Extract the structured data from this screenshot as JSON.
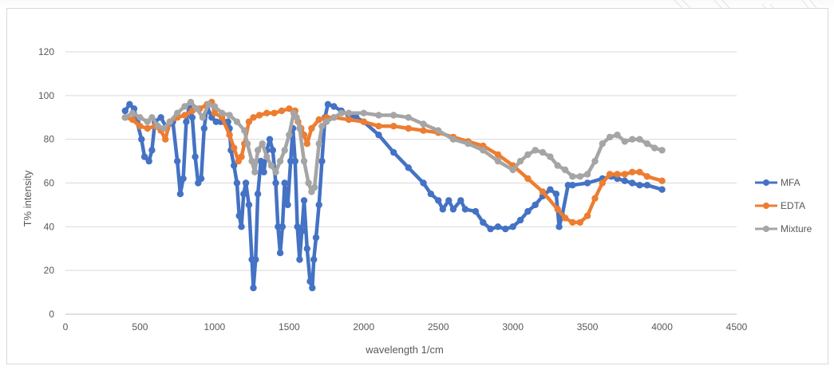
{
  "chart_data": {
    "type": "line",
    "title": "",
    "xlabel": "wavelength 1/cm",
    "ylabel": "T% intensity",
    "xlim": [
      0,
      4500
    ],
    "ylim": [
      0,
      120
    ],
    "x_ticks": [
      0,
      500,
      1000,
      1500,
      2000,
      2500,
      3000,
      3500,
      4000,
      4500
    ],
    "y_ticks": [
      0,
      20,
      40,
      60,
      80,
      100,
      120
    ],
    "grid": "horizontal",
    "legend_position": "right",
    "series": [
      {
        "name": "MFA",
        "color": "#4472C4",
        "points": [
          [
            400,
            93
          ],
          [
            430,
            96
          ],
          [
            460,
            94
          ],
          [
            480,
            88
          ],
          [
            510,
            80
          ],
          [
            530,
            72
          ],
          [
            560,
            70
          ],
          [
            580,
            75
          ],
          [
            600,
            88
          ],
          [
            640,
            90
          ],
          [
            680,
            85
          ],
          [
            720,
            88
          ],
          [
            750,
            70
          ],
          [
            770,
            55
          ],
          [
            790,
            62
          ],
          [
            810,
            88
          ],
          [
            830,
            95
          ],
          [
            850,
            90
          ],
          [
            870,
            72
          ],
          [
            890,
            60
          ],
          [
            910,
            62
          ],
          [
            930,
            85
          ],
          [
            950,
            95
          ],
          [
            980,
            90
          ],
          [
            1010,
            88
          ],
          [
            1040,
            88
          ],
          [
            1060,
            88
          ],
          [
            1090,
            88
          ],
          [
            1100,
            85
          ],
          [
            1110,
            75
          ],
          [
            1130,
            68
          ],
          [
            1150,
            60
          ],
          [
            1165,
            45
          ],
          [
            1180,
            40
          ],
          [
            1195,
            55
          ],
          [
            1210,
            60
          ],
          [
            1230,
            50
          ],
          [
            1250,
            25
          ],
          [
            1260,
            12
          ],
          [
            1275,
            25
          ],
          [
            1290,
            55
          ],
          [
            1310,
            70
          ],
          [
            1330,
            65
          ],
          [
            1350,
            75
          ],
          [
            1370,
            80
          ],
          [
            1390,
            75
          ],
          [
            1410,
            60
          ],
          [
            1425,
            40
          ],
          [
            1440,
            28
          ],
          [
            1455,
            40
          ],
          [
            1470,
            60
          ],
          [
            1490,
            50
          ],
          [
            1510,
            70
          ],
          [
            1525,
            85
          ],
          [
            1540,
            70
          ],
          [
            1555,
            40
          ],
          [
            1570,
            25
          ],
          [
            1585,
            38
          ],
          [
            1600,
            52
          ],
          [
            1620,
            30
          ],
          [
            1640,
            15
          ],
          [
            1655,
            12
          ],
          [
            1665,
            25
          ],
          [
            1680,
            35
          ],
          [
            1700,
            50
          ],
          [
            1720,
            70
          ],
          [
            1740,
            90
          ],
          [
            1760,
            96
          ],
          [
            1800,
            95
          ],
          [
            1850,
            93
          ],
          [
            1900,
            91
          ],
          [
            1950,
            90
          ],
          [
            2000,
            88
          ],
          [
            2100,
            82
          ],
          [
            2200,
            74
          ],
          [
            2300,
            67
          ],
          [
            2400,
            60
          ],
          [
            2450,
            55
          ],
          [
            2500,
            52
          ],
          [
            2530,
            48
          ],
          [
            2570,
            52
          ],
          [
            2600,
            48
          ],
          [
            2650,
            52
          ],
          [
            2680,
            48
          ],
          [
            2750,
            47
          ],
          [
            2800,
            42
          ],
          [
            2850,
            39
          ],
          [
            2900,
            40
          ],
          [
            2950,
            39
          ],
          [
            3000,
            40
          ],
          [
            3050,
            43
          ],
          [
            3100,
            47
          ],
          [
            3150,
            50
          ],
          [
            3200,
            54
          ],
          [
            3250,
            57
          ],
          [
            3290,
            55
          ],
          [
            3310,
            40
          ],
          [
            3330,
            45
          ],
          [
            3370,
            59
          ],
          [
            3400,
            59
          ],
          [
            3500,
            60
          ],
          [
            3600,
            62
          ],
          [
            3660,
            63
          ],
          [
            3700,
            62
          ],
          [
            3750,
            61
          ],
          [
            3800,
            60
          ],
          [
            3850,
            59
          ],
          [
            3900,
            59
          ],
          [
            4000,
            57
          ]
        ]
      },
      {
        "name": "EDTA",
        "color": "#ED7D31",
        "points": [
          [
            400,
            90
          ],
          [
            450,
            89
          ],
          [
            500,
            86
          ],
          [
            550,
            85
          ],
          [
            600,
            86
          ],
          [
            640,
            84
          ],
          [
            670,
            80
          ],
          [
            700,
            88
          ],
          [
            750,
            90
          ],
          [
            800,
            91
          ],
          [
            850,
            93
          ],
          [
            900,
            94
          ],
          [
            950,
            96
          ],
          [
            980,
            97
          ],
          [
            1000,
            92
          ],
          [
            1050,
            90
          ],
          [
            1100,
            82
          ],
          [
            1130,
            76
          ],
          [
            1160,
            70
          ],
          [
            1180,
            72
          ],
          [
            1200,
            78
          ],
          [
            1230,
            88
          ],
          [
            1260,
            90
          ],
          [
            1300,
            91
          ],
          [
            1350,
            92
          ],
          [
            1400,
            92
          ],
          [
            1450,
            93
          ],
          [
            1500,
            94
          ],
          [
            1540,
            93
          ],
          [
            1560,
            88
          ],
          [
            1580,
            85
          ],
          [
            1600,
            82
          ],
          [
            1620,
            78
          ],
          [
            1650,
            85
          ],
          [
            1700,
            89
          ],
          [
            1750,
            90
          ],
          [
            1800,
            90
          ],
          [
            1900,
            89
          ],
          [
            2000,
            88
          ],
          [
            2100,
            86
          ],
          [
            2200,
            86
          ],
          [
            2300,
            85
          ],
          [
            2400,
            84
          ],
          [
            2500,
            83
          ],
          [
            2600,
            81
          ],
          [
            2700,
            79
          ],
          [
            2800,
            77
          ],
          [
            2900,
            73
          ],
          [
            3000,
            68
          ],
          [
            3100,
            62
          ],
          [
            3200,
            56
          ],
          [
            3300,
            48
          ],
          [
            3350,
            44
          ],
          [
            3400,
            42
          ],
          [
            3450,
            42
          ],
          [
            3500,
            45
          ],
          [
            3550,
            53
          ],
          [
            3600,
            60
          ],
          [
            3650,
            64
          ],
          [
            3700,
            64
          ],
          [
            3750,
            64
          ],
          [
            3800,
            65
          ],
          [
            3850,
            65
          ],
          [
            3900,
            63
          ],
          [
            4000,
            61
          ]
        ]
      },
      {
        "name": "Mixture",
        "color": "#A5A5A5",
        "points": [
          [
            400,
            90
          ],
          [
            450,
            92
          ],
          [
            500,
            90
          ],
          [
            550,
            88
          ],
          [
            580,
            90
          ],
          [
            620,
            86
          ],
          [
            660,
            85
          ],
          [
            700,
            88
          ],
          [
            750,
            92
          ],
          [
            800,
            95
          ],
          [
            840,
            97
          ],
          [
            880,
            94
          ],
          [
            920,
            90
          ],
          [
            960,
            96
          ],
          [
            1000,
            95
          ],
          [
            1050,
            92
          ],
          [
            1100,
            91
          ],
          [
            1150,
            88
          ],
          [
            1200,
            84
          ],
          [
            1220,
            78
          ],
          [
            1250,
            70
          ],
          [
            1270,
            65
          ],
          [
            1290,
            75
          ],
          [
            1320,
            78
          ],
          [
            1350,
            72
          ],
          [
            1380,
            68
          ],
          [
            1410,
            65
          ],
          [
            1440,
            70
          ],
          [
            1470,
            75
          ],
          [
            1500,
            82
          ],
          [
            1530,
            92
          ],
          [
            1550,
            90
          ],
          [
            1570,
            85
          ],
          [
            1600,
            70
          ],
          [
            1630,
            60
          ],
          [
            1650,
            56
          ],
          [
            1670,
            58
          ],
          [
            1700,
            78
          ],
          [
            1720,
            86
          ],
          [
            1750,
            88
          ],
          [
            1800,
            90
          ],
          [
            1850,
            92
          ],
          [
            1900,
            92
          ],
          [
            2000,
            92
          ],
          [
            2100,
            91
          ],
          [
            2200,
            91
          ],
          [
            2300,
            90
          ],
          [
            2400,
            87
          ],
          [
            2500,
            84
          ],
          [
            2600,
            80
          ],
          [
            2700,
            78
          ],
          [
            2800,
            75
          ],
          [
            2900,
            70
          ],
          [
            3000,
            66
          ],
          [
            3050,
            70
          ],
          [
            3100,
            73
          ],
          [
            3150,
            75
          ],
          [
            3200,
            74
          ],
          [
            3250,
            72
          ],
          [
            3300,
            68
          ],
          [
            3350,
            66
          ],
          [
            3400,
            63
          ],
          [
            3450,
            63
          ],
          [
            3500,
            64
          ],
          [
            3550,
            70
          ],
          [
            3600,
            78
          ],
          [
            3650,
            81
          ],
          [
            3700,
            82
          ],
          [
            3750,
            79
          ],
          [
            3800,
            80
          ],
          [
            3850,
            80
          ],
          [
            3900,
            78
          ],
          [
            3950,
            76
          ],
          [
            4000,
            75
          ]
        ]
      }
    ]
  }
}
